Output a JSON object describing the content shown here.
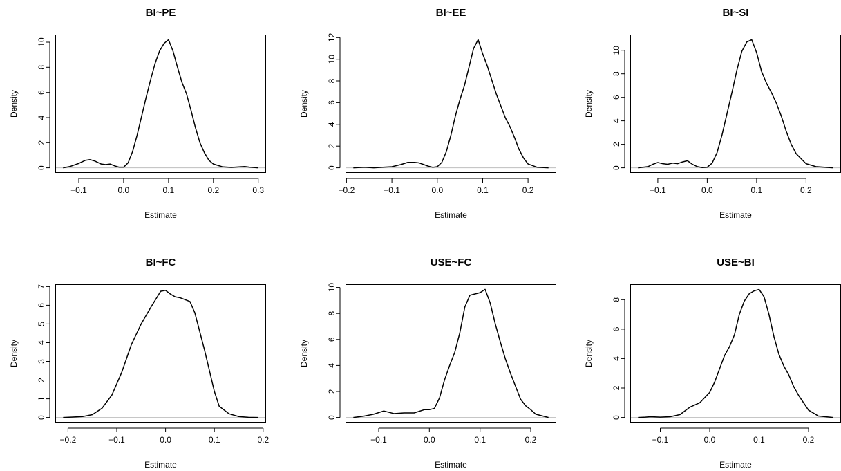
{
  "chart_data": [
    {
      "type": "line",
      "title": "BI~PE",
      "xlabel": "Estimate",
      "ylabel": "Density",
      "xlim": [
        -0.135,
        0.3
      ],
      "ylim": [
        0,
        10.2
      ],
      "xticks": [
        -0.1,
        0.0,
        0.1,
        0.2,
        0.3
      ],
      "xtick_labels": [
        "−0.1",
        "0.0",
        "0.1",
        "0.2",
        "0.3"
      ],
      "yticks": [
        0,
        2,
        4,
        6,
        8,
        10
      ],
      "ytick_labels": [
        "0",
        "2",
        "4",
        "6",
        "8",
        "10"
      ],
      "baseline": true,
      "series": [
        {
          "x": [
            -0.135,
            -0.12,
            -0.1,
            -0.085,
            -0.075,
            -0.065,
            -0.05,
            -0.04,
            -0.03,
            -0.02,
            -0.01,
            0.0,
            0.01,
            0.02,
            0.03,
            0.04,
            0.05,
            0.06,
            0.07,
            0.08,
            0.09,
            0.1,
            0.11,
            0.12,
            0.13,
            0.14,
            0.15,
            0.16,
            0.17,
            0.18,
            0.19,
            0.2,
            0.22,
            0.24,
            0.26,
            0.27,
            0.28,
            0.3
          ],
          "y": [
            0.0,
            0.1,
            0.35,
            0.6,
            0.65,
            0.55,
            0.3,
            0.25,
            0.3,
            0.15,
            0.05,
            0.05,
            0.4,
            1.3,
            2.6,
            4.1,
            5.6,
            7.0,
            8.3,
            9.3,
            9.9,
            10.2,
            9.3,
            8.0,
            6.8,
            5.9,
            4.6,
            3.2,
            2.0,
            1.2,
            0.6,
            0.3,
            0.08,
            0.03,
            0.08,
            0.1,
            0.05,
            0.0
          ]
        }
      ]
    },
    {
      "type": "line",
      "title": "BI~EE",
      "xlabel": "Estimate",
      "ylabel": "Density",
      "xlim": [
        -0.185,
        0.245
      ],
      "ylim": [
        0,
        11.8
      ],
      "xticks": [
        -0.2,
        -0.1,
        0.0,
        0.1,
        0.2
      ],
      "xtick_labels": [
        "−0.2",
        "−0.1",
        "0.0",
        "0.1",
        "0.2"
      ],
      "yticks": [
        0,
        2,
        4,
        6,
        8,
        10,
        12
      ],
      "ytick_labels": [
        "0",
        "2",
        "4",
        "6",
        "8",
        "10",
        "12"
      ],
      "baseline": true,
      "series": [
        {
          "x": [
            -0.185,
            -0.16,
            -0.14,
            -0.12,
            -0.1,
            -0.08,
            -0.065,
            -0.05,
            -0.04,
            -0.03,
            -0.02,
            -0.01,
            0.0,
            0.01,
            0.02,
            0.03,
            0.04,
            0.05,
            0.06,
            0.07,
            0.08,
            0.09,
            0.1,
            0.11,
            0.12,
            0.13,
            0.14,
            0.15,
            0.16,
            0.17,
            0.18,
            0.19,
            0.2,
            0.22,
            0.245
          ],
          "y": [
            0.0,
            0.05,
            0.0,
            0.05,
            0.1,
            0.3,
            0.5,
            0.5,
            0.45,
            0.3,
            0.15,
            0.05,
            0.1,
            0.5,
            1.5,
            3.0,
            4.8,
            6.3,
            7.6,
            9.3,
            11.0,
            11.8,
            10.5,
            9.4,
            8.1,
            6.8,
            5.7,
            4.6,
            3.8,
            2.8,
            1.7,
            0.9,
            0.35,
            0.05,
            0.0
          ]
        }
      ]
    },
    {
      "type": "line",
      "title": "BI~SI",
      "xlabel": "Estimate",
      "ylabel": "Density",
      "xlim": [
        -0.14,
        0.255
      ],
      "ylim": [
        0,
        10.9
      ],
      "xticks": [
        -0.1,
        0.0,
        0.1,
        0.2
      ],
      "xtick_labels": [
        "−0.1",
        "0.0",
        "0.1",
        "0.2"
      ],
      "yticks": [
        0,
        2,
        4,
        6,
        8,
        10
      ],
      "ytick_labels": [
        "0",
        "2",
        "4",
        "6",
        "8",
        "10"
      ],
      "baseline": true,
      "series": [
        {
          "x": [
            -0.14,
            -0.12,
            -0.11,
            -0.1,
            -0.09,
            -0.08,
            -0.07,
            -0.06,
            -0.05,
            -0.04,
            -0.03,
            -0.02,
            -0.01,
            0.0,
            0.01,
            0.02,
            0.03,
            0.04,
            0.05,
            0.06,
            0.07,
            0.08,
            0.09,
            0.1,
            0.11,
            0.12,
            0.13,
            0.14,
            0.15,
            0.16,
            0.17,
            0.18,
            0.2,
            0.22,
            0.255
          ],
          "y": [
            0.0,
            0.1,
            0.3,
            0.45,
            0.35,
            0.3,
            0.4,
            0.35,
            0.5,
            0.6,
            0.3,
            0.1,
            0.02,
            0.05,
            0.4,
            1.3,
            2.8,
            4.6,
            6.4,
            8.3,
            9.9,
            10.7,
            10.9,
            9.8,
            8.2,
            7.2,
            6.4,
            5.5,
            4.4,
            3.1,
            2.0,
            1.2,
            0.35,
            0.1,
            0.0
          ]
        }
      ]
    },
    {
      "type": "line",
      "title": "BI~FC",
      "xlabel": "Estimate",
      "ylabel": "Density",
      "xlim": [
        -0.21,
        0.19
      ],
      "ylim": [
        0,
        6.85
      ],
      "xticks": [
        -0.2,
        -0.1,
        0.0,
        0.1,
        0.2
      ],
      "xtick_labels": [
        "−0.2",
        "−0.1",
        "0.0",
        "0.1",
        "0.2"
      ],
      "yticks": [
        0,
        1,
        2,
        3,
        4,
        5,
        6,
        7
      ],
      "ytick_labels": [
        "0",
        "1",
        "2",
        "3",
        "4",
        "5",
        "6",
        "7"
      ],
      "baseline": true,
      "series": [
        {
          "x": [
            -0.21,
            -0.19,
            -0.17,
            -0.15,
            -0.13,
            -0.11,
            -0.09,
            -0.07,
            -0.05,
            -0.03,
            -0.01,
            0.0,
            0.01,
            0.02,
            0.03,
            0.05,
            0.06,
            0.07,
            0.08,
            0.09,
            0.1,
            0.11,
            0.13,
            0.15,
            0.17,
            0.19
          ],
          "y": [
            0.0,
            0.02,
            0.05,
            0.15,
            0.5,
            1.2,
            2.4,
            3.9,
            5.0,
            5.9,
            6.75,
            6.8,
            6.6,
            6.45,
            6.4,
            6.2,
            5.6,
            4.6,
            3.6,
            2.5,
            1.4,
            0.6,
            0.2,
            0.05,
            0.01,
            0.0
          ]
        }
      ]
    },
    {
      "type": "line",
      "title": "USE~FC",
      "xlabel": "Estimate",
      "ylabel": "Density",
      "xlim": [
        -0.15,
        0.235
      ],
      "ylim": [
        0,
        9.85
      ],
      "xticks": [
        -0.1,
        0.0,
        0.1,
        0.2
      ],
      "xtick_labels": [
        "−0.1",
        "0.0",
        "0.1",
        "0.2"
      ],
      "yticks": [
        0,
        2,
        4,
        6,
        8,
        10
      ],
      "ytick_labels": [
        "0",
        "2",
        "4",
        "6",
        "8",
        "10"
      ],
      "baseline": true,
      "series": [
        {
          "x": [
            -0.15,
            -0.13,
            -0.11,
            -0.09,
            -0.07,
            -0.05,
            -0.03,
            -0.01,
            0.0,
            0.01,
            0.02,
            0.03,
            0.04,
            0.05,
            0.06,
            0.07,
            0.08,
            0.09,
            0.1,
            0.11,
            0.12,
            0.13,
            0.14,
            0.15,
            0.16,
            0.17,
            0.18,
            0.19,
            0.2,
            0.21,
            0.235
          ],
          "y": [
            0.0,
            0.1,
            0.25,
            0.5,
            0.3,
            0.35,
            0.35,
            0.6,
            0.6,
            0.7,
            1.5,
            2.9,
            4.0,
            5.0,
            6.5,
            8.5,
            9.4,
            9.5,
            9.6,
            9.85,
            8.8,
            7.2,
            5.8,
            4.5,
            3.4,
            2.4,
            1.4,
            0.9,
            0.6,
            0.25,
            0.0
          ]
        }
      ]
    },
    {
      "type": "line",
      "title": "USE~BI",
      "xlabel": "Estimate",
      "ylabel": "Density",
      "xlim": [
        -0.145,
        0.25
      ],
      "ylim": [
        0,
        8.7
      ],
      "xticks": [
        -0.1,
        0.0,
        0.1,
        0.2
      ],
      "xtick_labels": [
        "−0.1",
        "0.0",
        "0.1",
        "0.2"
      ],
      "yticks": [
        0,
        2,
        4,
        6,
        8
      ],
      "ytick_labels": [
        "0",
        "2",
        "4",
        "6",
        "8"
      ],
      "baseline": true,
      "series": [
        {
          "x": [
            -0.145,
            -0.13,
            -0.12,
            -0.1,
            -0.08,
            -0.06,
            -0.05,
            -0.04,
            -0.02,
            0.0,
            0.01,
            0.02,
            0.03,
            0.04,
            0.05,
            0.06,
            0.07,
            0.08,
            0.09,
            0.1,
            0.11,
            0.12,
            0.13,
            0.14,
            0.15,
            0.16,
            0.17,
            0.18,
            0.2,
            0.22,
            0.25
          ],
          "y": [
            0.0,
            0.02,
            0.05,
            0.02,
            0.05,
            0.2,
            0.45,
            0.7,
            1.0,
            1.7,
            2.4,
            3.3,
            4.2,
            4.8,
            5.6,
            7.0,
            7.9,
            8.4,
            8.6,
            8.7,
            8.2,
            7.0,
            5.5,
            4.3,
            3.5,
            2.9,
            2.1,
            1.5,
            0.5,
            0.1,
            0.0
          ]
        }
      ]
    }
  ]
}
